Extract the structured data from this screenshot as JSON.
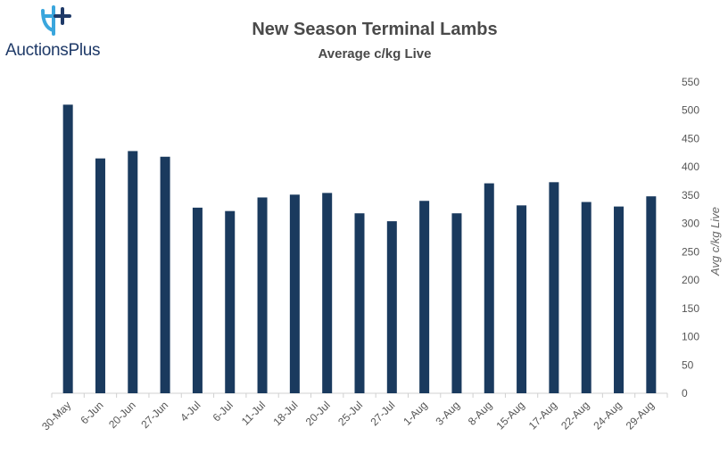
{
  "logo": {
    "text": "AuctionsPlus",
    "icon": "auctionsplus-logo-icon"
  },
  "colors": {
    "bar": "#1a3a5e",
    "logo_blue": "#1f3a68",
    "logo_accent": "#3aa6dd"
  },
  "chart_data": {
    "type": "bar",
    "title": "New Season Terminal Lambs",
    "subtitle": "Average c/kg Live",
    "xlabel": "",
    "ylabel": "Avg c/kg Live",
    "y_axis_position": "right",
    "ylim": [
      0,
      550
    ],
    "yticks": [
      0,
      50,
      100,
      150,
      200,
      250,
      300,
      350,
      400,
      450,
      500,
      550
    ],
    "grid": false,
    "legend": "none",
    "categories": [
      "30-May",
      "6-Jun",
      "20-Jun",
      "27-Jun",
      "4-Jul",
      "6-Jul",
      "11-Jul",
      "18-Jul",
      "20-Jul",
      "25-Jul",
      "27-Jul",
      "1-Aug",
      "3-Aug",
      "8-Aug",
      "15-Aug",
      "17-Aug",
      "22-Aug",
      "24-Aug",
      "29-Aug"
    ],
    "values": [
      510,
      415,
      428,
      418,
      328,
      322,
      346,
      351,
      354,
      318,
      304,
      340,
      318,
      371,
      332,
      373,
      338,
      330,
      348
    ]
  }
}
